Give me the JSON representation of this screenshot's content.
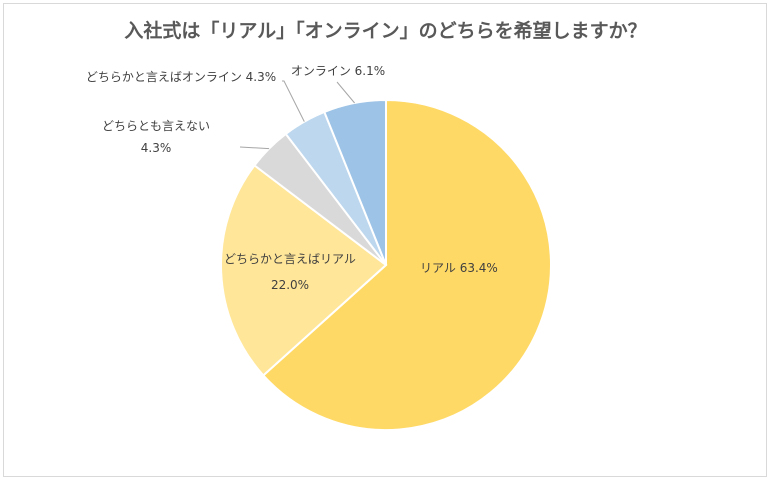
{
  "chart_data": {
    "type": "pie",
    "title": "入社式は「リアル」「オンライン」のどちらを希望しますか？",
    "slices": [
      {
        "name": "リアル",
        "value": 63.4,
        "label": "リアル 63.4%",
        "color": "#FFD966"
      },
      {
        "name": "どちらかと言えばリアル",
        "value": 22.0,
        "label_name": "どちらかと言えばリアル",
        "label_value": "22.0%",
        "color": "#FFE699"
      },
      {
        "name": "どちらとも言えない",
        "value": 4.3,
        "label_name": "どちらとも言えない",
        "label_value": "4.3%",
        "color": "#D9D9D9"
      },
      {
        "name": "どちらかと言えばオンライン",
        "value": 4.3,
        "label": "どちらかと言えばオンライン 4.3%",
        "color": "#BDD7EE"
      },
      {
        "name": "オンライン",
        "value": 6.1,
        "label": "オンライン 6.1%",
        "color": "#9DC3E6"
      }
    ],
    "start": "12 o'clock",
    "direction": "clockwise"
  }
}
